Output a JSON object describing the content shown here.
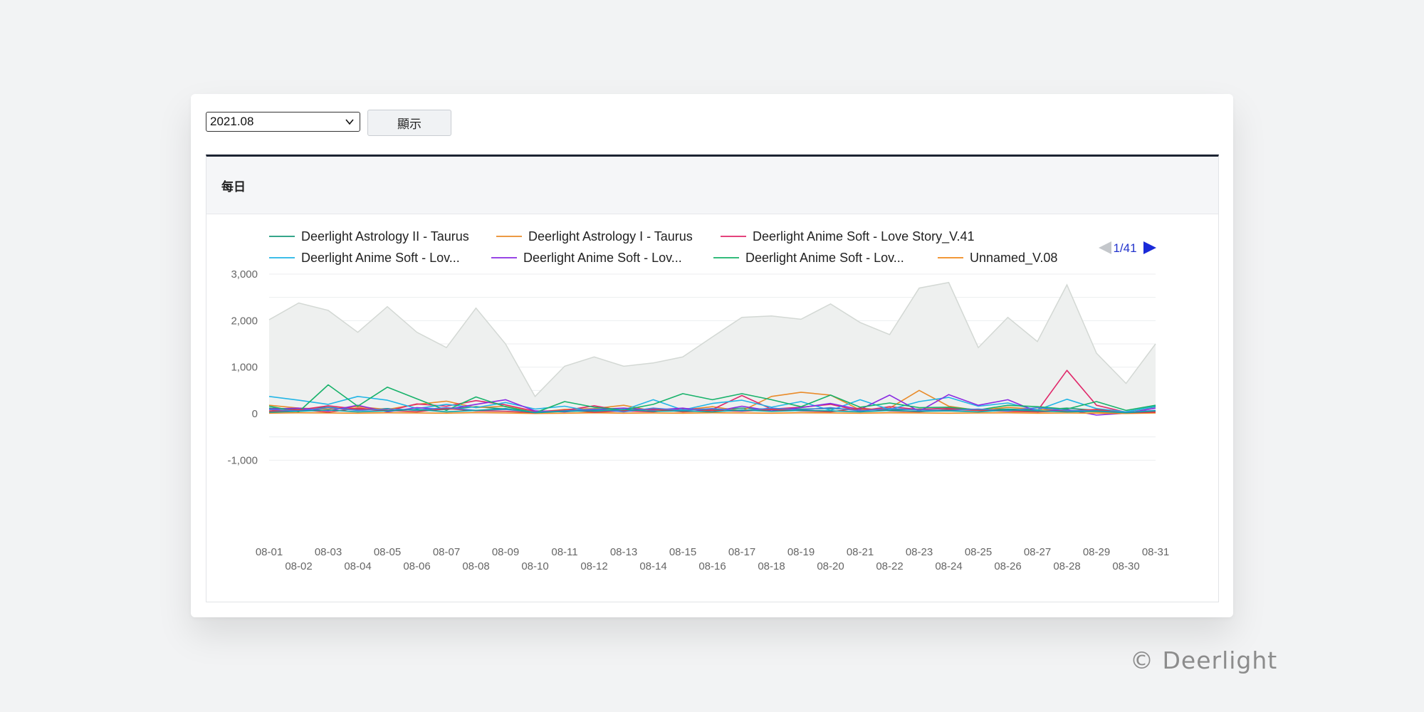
{
  "controls": {
    "month_value": "2021.08",
    "show_button_label": "顯示"
  },
  "panel": {
    "title": "每日"
  },
  "legend": {
    "pager_text": "1/41",
    "items": [
      {
        "label": "Deerlight Astrology II - Taurus",
        "color": "#1a9a7a"
      },
      {
        "label": "Deerlight Astrology I - Taurus",
        "color": "#e98b2a"
      },
      {
        "label": "Deerlight Anime Soft - Love Story_V.41",
        "color": "#e0286a"
      },
      {
        "label": "Deerlight Anime Soft - Lov...",
        "color": "#22b5e6"
      },
      {
        "label": "Deerlight Anime Soft - Lov...",
        "color": "#8a2be2"
      },
      {
        "label": "Deerlight Anime Soft - Lov...",
        "color": "#17b26a"
      },
      {
        "label": "Unnamed_V.08",
        "color": "#f08a1c"
      }
    ]
  },
  "chart_data": {
    "type": "line",
    "ylim": [
      -1000,
      3000
    ],
    "yticks": [
      -1000,
      0,
      1000,
      2000,
      3000
    ],
    "x": [
      "08-01",
      "08-02",
      "08-03",
      "08-04",
      "08-05",
      "08-06",
      "08-07",
      "08-08",
      "08-09",
      "08-10",
      "08-11",
      "08-12",
      "08-13",
      "08-14",
      "08-15",
      "08-16",
      "08-17",
      "08-18",
      "08-19",
      "08-20",
      "08-21",
      "08-22",
      "08-23",
      "08-24",
      "08-25",
      "08-26",
      "08-27",
      "08-28",
      "08-29",
      "08-30",
      "08-31"
    ],
    "background_total": [
      2020,
      2380,
      2220,
      1750,
      2300,
      1750,
      1420,
      2270,
      1500,
      370,
      1020,
      1220,
      1020,
      1090,
      1220,
      1650,
      2070,
      2100,
      2030,
      2360,
      1960,
      1700,
      2700,
      2820,
      1420,
      2070,
      1550,
      2770,
      1300,
      650,
      1500
    ],
    "series": [
      {
        "name": "Deerlight Astrology II - Taurus",
        "color": "#1a9a7a",
        "values": [
          120,
          90,
          140,
          80,
          110,
          70,
          90,
          150,
          100,
          40,
          60,
          80,
          70,
          90,
          100,
          80,
          120,
          90,
          100,
          110,
          90,
          80,
          100,
          110,
          90,
          100,
          80,
          120,
          70,
          40,
          150
        ]
      },
      {
        "name": "Deerlight Astrology I - Taurus",
        "color": "#e98b2a",
        "values": [
          180,
          120,
          100,
          150,
          90,
          200,
          270,
          130,
          160,
          30,
          90,
          110,
          180,
          60,
          80,
          150,
          60,
          370,
          460,
          400,
          80,
          120,
          500,
          160,
          70,
          140,
          90,
          60,
          40,
          20,
          60
        ]
      },
      {
        "name": "Deerlight Anime Soft - Love Story_V.41",
        "color": "#e0286a",
        "values": [
          40,
          80,
          170,
          100,
          60,
          210,
          160,
          280,
          190,
          50,
          70,
          170,
          60,
          40,
          110,
          90,
          390,
          100,
          140,
          200,
          60,
          150,
          90,
          120,
          80,
          70,
          60,
          930,
          180,
          30,
          40
        ]
      },
      {
        "name": "Deerlight Anime Soft - Lov...",
        "color": "#22b5e6",
        "values": [
          370,
          290,
          200,
          370,
          290,
          110,
          200,
          130,
          240,
          100,
          160,
          40,
          80,
          300,
          80,
          220,
          290,
          140,
          260,
          70,
          300,
          90,
          260,
          350,
          160,
          230,
          80,
          310,
          110,
          40,
          160
        ]
      },
      {
        "name": "Deerlight Anime Soft - Lov...",
        "color": "#8a2be2",
        "values": [
          100,
          120,
          60,
          180,
          40,
          130,
          90,
          200,
          300,
          60,
          40,
          90,
          120,
          80,
          120,
          40,
          160,
          60,
          130,
          220,
          90,
          400,
          50,
          410,
          180,
          300,
          40,
          90,
          -30,
          10,
          120
        ]
      },
      {
        "name": "Deerlight Anime Soft - Lov...",
        "color": "#17b26a",
        "values": [
          160,
          40,
          620,
          160,
          570,
          320,
          70,
          360,
          150,
          20,
          260,
          140,
          80,
          200,
          430,
          300,
          430,
          300,
          150,
          400,
          140,
          230,
          130,
          140,
          80,
          180,
          150,
          100,
          260,
          70,
          180
        ]
      },
      {
        "name": "Unnamed_V.08",
        "color": "#f08a1c",
        "values": [
          10,
          20,
          15,
          10,
          20,
          15,
          10,
          25,
          15,
          5,
          10,
          20,
          10,
          15,
          10,
          20,
          15,
          10,
          20,
          15,
          10,
          20,
          15,
          10,
          15,
          20,
          10,
          15,
          10,
          5,
          15
        ]
      },
      {
        "name": "",
        "color": "#d93a4a",
        "values": [
          60,
          90,
          30,
          120,
          70,
          40,
          110,
          60,
          50,
          20,
          80,
          30,
          60,
          100,
          40,
          70,
          50,
          90,
          60,
          40,
          120,
          60,
          40,
          90,
          70,
          50,
          40,
          60,
          90,
          20,
          30
        ]
      },
      {
        "name": "",
        "color": "#4a7be0",
        "values": [
          90,
          60,
          130,
          70,
          100,
          80,
          130,
          70,
          90,
          30,
          60,
          100,
          40,
          120,
          70,
          110,
          60,
          120,
          80,
          130,
          60,
          110,
          80,
          70,
          100,
          60,
          130,
          70,
          60,
          30,
          70
        ]
      },
      {
        "name": "",
        "color": "#0fa3a3",
        "values": [
          30,
          50,
          80,
          40,
          60,
          90,
          40,
          70,
          110,
          20,
          50,
          60,
          90,
          50,
          60,
          40,
          80,
          50,
          70,
          60,
          40,
          70,
          50,
          60,
          40,
          80,
          60,
          40,
          50,
          20,
          60
        ]
      }
    ]
  }
}
